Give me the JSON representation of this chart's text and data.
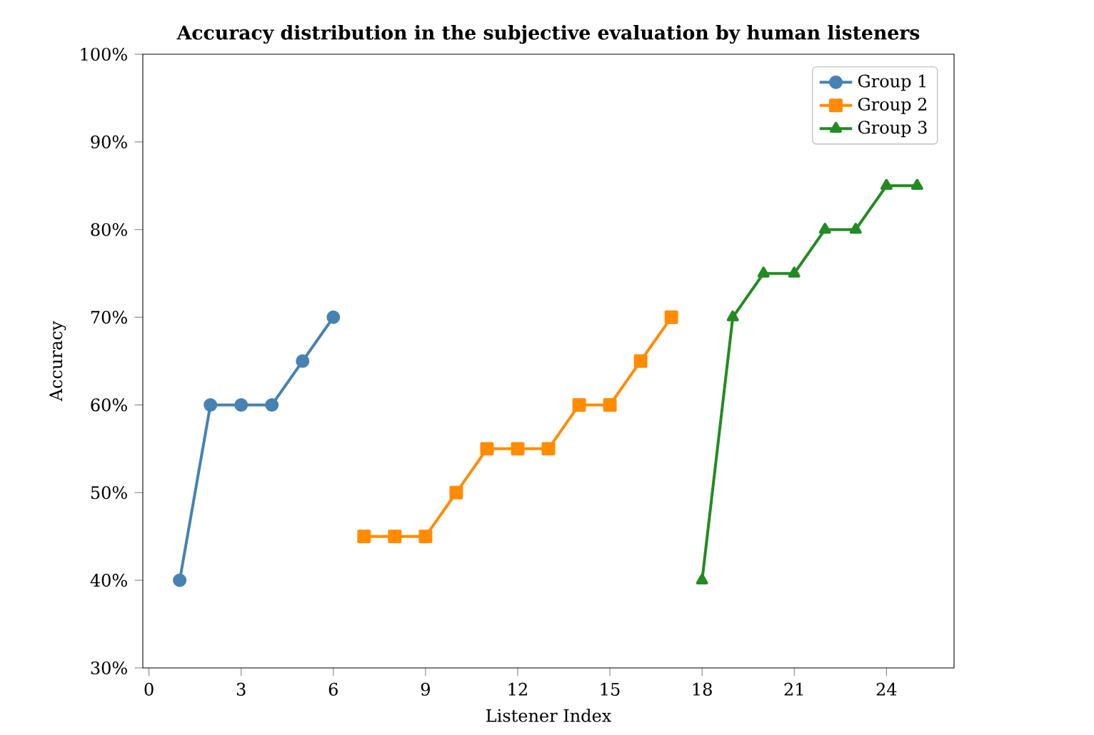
{
  "chart_data": {
    "type": "line",
    "title": "Accuracy distribution in the subjective evaluation by human listeners",
    "xlabel": "Listener Index",
    "ylabel": "Accuracy",
    "xlim": [
      -0.2,
      26.2
    ],
    "xticks": [
      0,
      3,
      6,
      9,
      12,
      15,
      18,
      21,
      24
    ],
    "ylim": [
      30,
      100
    ],
    "yticks": [
      {
        "value": 30,
        "label": "30%"
      },
      {
        "value": 40,
        "label": "40%"
      },
      {
        "value": 50,
        "label": "50%"
      },
      {
        "value": 60,
        "label": "60%"
      },
      {
        "value": 70,
        "label": "70%"
      },
      {
        "value": 80,
        "label": "80%"
      },
      {
        "value": 90,
        "label": "90%"
      },
      {
        "value": 100,
        "label": "100%"
      }
    ],
    "legend": "top right",
    "line_style": "solid",
    "series": [
      {
        "name": "Group 1",
        "color": "#4682b4",
        "marker": "circle",
        "x": [
          1,
          2,
          3,
          4,
          5,
          6
        ],
        "values": [
          40,
          60,
          60,
          60,
          65,
          70
        ]
      },
      {
        "name": "Group 2",
        "color": "#ff8c00",
        "marker": "square",
        "x": [
          7,
          8,
          9,
          10,
          11,
          12,
          13,
          14,
          15,
          16,
          17
        ],
        "values": [
          45,
          45,
          45,
          50,
          55,
          55,
          55,
          60,
          60,
          65,
          70
        ]
      },
      {
        "name": "Group 3",
        "color": "#228b22",
        "marker": "triangle",
        "x": [
          18,
          19,
          20,
          21,
          22,
          23,
          24,
          25
        ],
        "values": [
          40,
          70,
          75,
          75,
          80,
          80,
          85,
          85
        ]
      }
    ]
  }
}
